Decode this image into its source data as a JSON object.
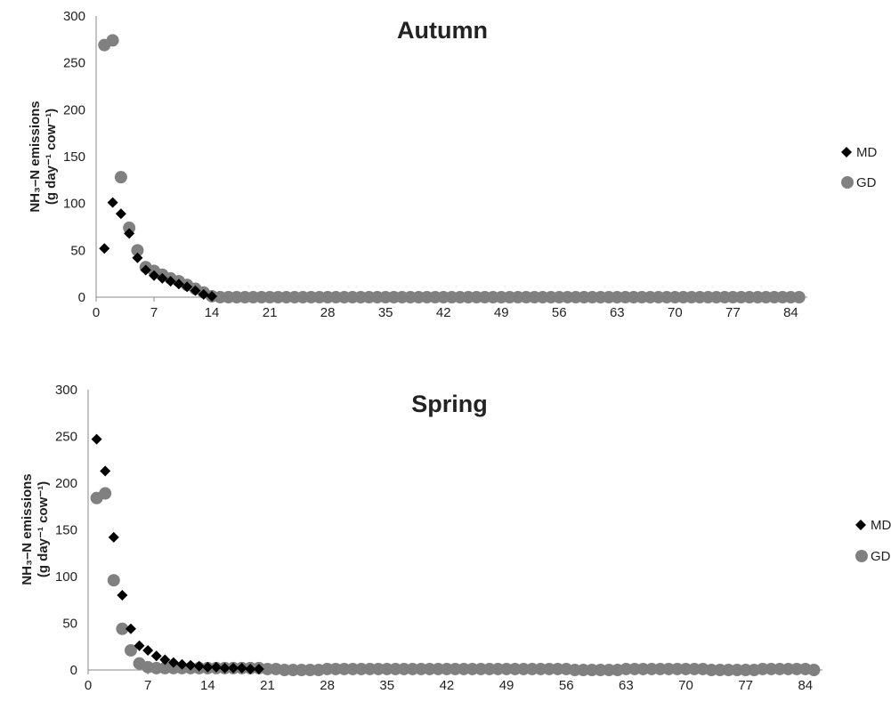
{
  "chart_data": [
    {
      "type": "scatter",
      "title": "Autumn",
      "xlabel": "",
      "ylabel_line1": "NH₃–N emissions",
      "ylabel_line2": "(g day⁻¹ cow⁻¹)",
      "xlim": [
        0,
        86
      ],
      "ylim": [
        0,
        300
      ],
      "xticks": [
        0,
        7,
        14,
        21,
        28,
        35,
        42,
        49,
        56,
        63,
        70,
        77,
        84
      ],
      "yticks": [
        0,
        50,
        100,
        150,
        200,
        250,
        300
      ],
      "grid": false,
      "legend_position": "right",
      "series": [
        {
          "name": "MD",
          "marker": "diamond",
          "color": "#000000",
          "x": [
            1,
            2,
            3,
            4,
            5,
            6,
            7,
            8,
            9,
            10,
            11,
            12,
            13,
            14
          ],
          "y": [
            52,
            101,
            89,
            68,
            42,
            29,
            23,
            20,
            17,
            14,
            11,
            7,
            3,
            1
          ]
        },
        {
          "name": "GD",
          "marker": "circle",
          "color": "#808080",
          "x": [
            1,
            2,
            3,
            4,
            5,
            6,
            7,
            8,
            9,
            10,
            11,
            12,
            13,
            14,
            15,
            16,
            17,
            18,
            19,
            20,
            21,
            22,
            23,
            24,
            25,
            26,
            27,
            28,
            29,
            30,
            31,
            32,
            33,
            34,
            35,
            36,
            37,
            38,
            39,
            40,
            41,
            42,
            43,
            44,
            45,
            46,
            47,
            48,
            49,
            50,
            51,
            52,
            53,
            54,
            55,
            56,
            57,
            58,
            59,
            60,
            61,
            62,
            63,
            64,
            65,
            66,
            67,
            68,
            69,
            70,
            71,
            72,
            73,
            74,
            75,
            76,
            77,
            78,
            79,
            80,
            81,
            82,
            83,
            84,
            85
          ],
          "y": [
            269,
            274,
            128,
            74,
            50,
            32,
            28,
            24,
            20,
            17,
            13,
            9,
            5,
            1,
            0,
            0,
            0,
            0,
            0,
            0,
            0,
            0,
            0,
            0,
            0,
            0,
            0,
            0,
            0,
            0,
            0,
            0,
            0,
            0,
            0,
            0,
            0,
            0,
            0,
            0,
            0,
            0,
            0,
            0,
            0,
            0,
            0,
            0,
            0,
            0,
            0,
            0,
            0,
            0,
            0,
            0,
            0,
            0,
            0,
            0,
            0,
            0,
            0,
            0,
            0,
            0,
            0,
            0,
            0,
            0,
            0,
            0,
            0,
            0,
            0,
            0,
            0,
            0,
            0,
            0,
            0,
            0,
            0,
            0,
            0
          ]
        }
      ]
    },
    {
      "type": "scatter",
      "title": "Spring",
      "xlabel": "",
      "ylabel_line1": "NH₃–N emissions",
      "ylabel_line2": "(g day⁻¹ cow⁻¹)",
      "xlim": [
        0,
        86
      ],
      "ylim": [
        0,
        300
      ],
      "xticks": [
        0,
        7,
        14,
        21,
        28,
        35,
        42,
        49,
        56,
        63,
        70,
        77,
        84
      ],
      "yticks": [
        0,
        50,
        100,
        150,
        200,
        250,
        300
      ],
      "grid": false,
      "legend_position": "right",
      "series": [
        {
          "name": "MD",
          "marker": "diamond",
          "color": "#000000",
          "x": [
            1,
            2,
            3,
            4,
            5,
            6,
            7,
            8,
            9,
            10,
            11,
            12,
            13,
            14,
            15,
            16,
            17,
            18,
            19,
            20
          ],
          "y": [
            247,
            213,
            142,
            80,
            44,
            26,
            21,
            15,
            11,
            8,
            6,
            5,
            4,
            3,
            3,
            2,
            2,
            2,
            1,
            1
          ]
        },
        {
          "name": "GD",
          "marker": "circle",
          "color": "#808080",
          "x": [
            1,
            2,
            3,
            4,
            5,
            6,
            7,
            8,
            9,
            10,
            11,
            12,
            13,
            14,
            15,
            16,
            17,
            18,
            19,
            20,
            21,
            22,
            23,
            24,
            25,
            26,
            27,
            28,
            29,
            30,
            31,
            32,
            33,
            34,
            35,
            36,
            37,
            38,
            39,
            40,
            41,
            42,
            43,
            44,
            45,
            46,
            47,
            48,
            49,
            50,
            51,
            52,
            53,
            54,
            55,
            56,
            57,
            58,
            59,
            60,
            61,
            62,
            63,
            64,
            65,
            66,
            67,
            68,
            69,
            70,
            71,
            72,
            73,
            74,
            75,
            76,
            77,
            78,
            79,
            80,
            81,
            82,
            83,
            84,
            85
          ],
          "y": [
            184,
            189,
            96,
            44,
            21,
            7,
            3,
            2,
            2,
            2,
            2,
            2,
            2,
            2,
            2,
            2,
            2,
            2,
            2,
            2,
            1,
            1,
            0,
            0,
            0,
            0,
            0,
            1,
            1,
            1,
            1,
            1,
            1,
            1,
            1,
            1,
            1,
            1,
            1,
            1,
            1,
            1,
            1,
            1,
            1,
            1,
            1,
            1,
            1,
            1,
            1,
            1,
            1,
            1,
            1,
            1,
            0,
            0,
            0,
            0,
            0,
            0,
            1,
            1,
            1,
            1,
            1,
            1,
            1,
            1,
            1,
            1,
            0,
            0,
            0,
            0,
            0,
            0,
            1,
            1,
            1,
            1,
            1,
            1,
            0
          ]
        }
      ]
    }
  ]
}
